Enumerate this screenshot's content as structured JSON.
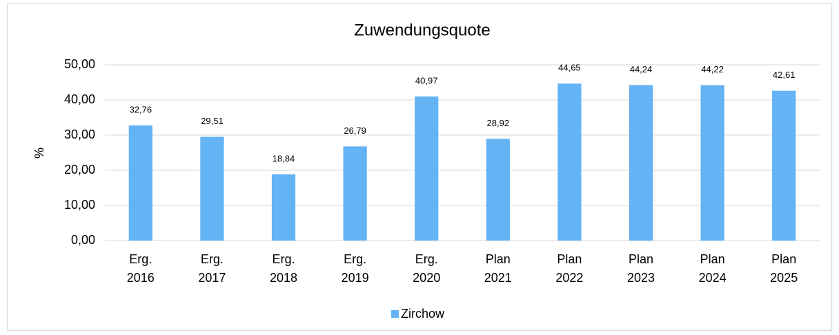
{
  "chart_data": {
    "type": "bar",
    "title": "Zuwendungsquote",
    "y_label": "%",
    "categories": [
      "Erg. 2016",
      "Erg. 2017",
      "Erg. 2018",
      "Erg. 2019",
      "Erg. 2020",
      "Plan 2021",
      "Plan 2022",
      "Plan 2023",
      "Plan 2024",
      "Plan 2025"
    ],
    "series": [
      {
        "name": "Zirchow",
        "color": "#63b3f5",
        "values": [
          32.76,
          29.51,
          18.84,
          26.79,
          40.97,
          28.92,
          44.65,
          44.24,
          44.22,
          42.61
        ],
        "value_labels": [
          "32,76",
          "29,51",
          "18,84",
          "26,79",
          "40,97",
          "28,92",
          "44,65",
          "44,24",
          "44,22",
          "42,61"
        ]
      }
    ],
    "ylim": [
      0,
      50
    ],
    "yticks": [
      {
        "value": 0,
        "label": "0,00"
      },
      {
        "value": 10,
        "label": "10,00"
      },
      {
        "value": 20,
        "label": "20,00"
      },
      {
        "value": 30,
        "label": "30,00"
      },
      {
        "value": 40,
        "label": "40,00"
      },
      {
        "value": 50,
        "label": "50,00"
      }
    ],
    "grid": true,
    "legend": "bottom"
  }
}
